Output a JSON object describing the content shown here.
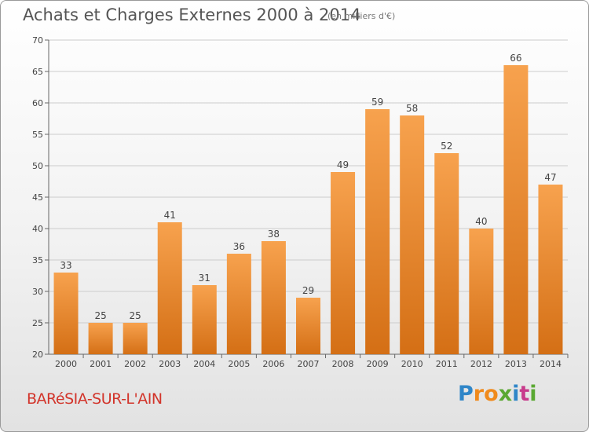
{
  "title": "Achats et Charges Externes 2000 à 2014",
  "unit": "(en milliers d'€)",
  "town": "BARéSIA-SUR-L'AIN",
  "logo": {
    "letters": [
      "P",
      "r",
      "o",
      "x",
      "i",
      "t",
      "i"
    ],
    "colors": [
      "#2f86c8",
      "#f08a1c",
      "#f08a1c",
      "#5aa832",
      "#2f86c8",
      "#c83c8c",
      "#5aa832"
    ]
  },
  "colors": {
    "bar_top": "#f7a24e",
    "bar_bottom": "#d46f15",
    "grid": "#cccccc",
    "title": "#555555",
    "town": "#d2342a"
  },
  "chart_data": {
    "type": "bar",
    "title": "Achats et Charges Externes 2000 à 2014",
    "categories": [
      "2000",
      "2001",
      "2002",
      "2003",
      "2004",
      "2005",
      "2006",
      "2007",
      "2008",
      "2009",
      "2010",
      "2011",
      "2012",
      "2013",
      "2014"
    ],
    "values": [
      33,
      25,
      25,
      41,
      31,
      36,
      38,
      29,
      49,
      59,
      58,
      52,
      40,
      66,
      47
    ],
    "ylim": [
      20,
      70
    ],
    "yticks": [
      20,
      25,
      30,
      35,
      40,
      45,
      50,
      55,
      60,
      65,
      70
    ],
    "grid": true
  }
}
